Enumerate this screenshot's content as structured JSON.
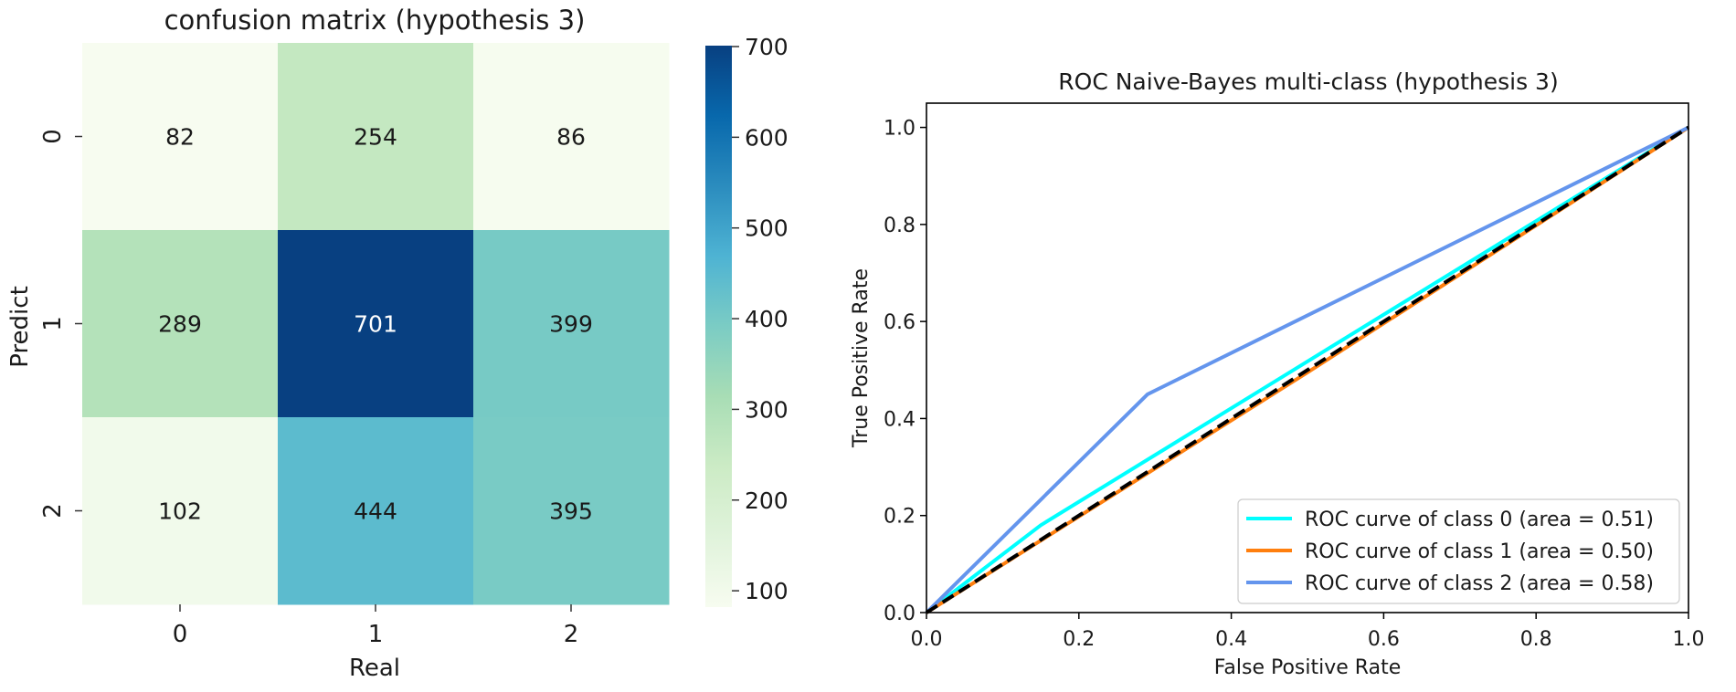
{
  "chart_data": [
    {
      "type": "heatmap",
      "title": "confusion matrix  (hypothesis 3)",
      "xlabel": "Real",
      "ylabel": "Predict",
      "x_categories": [
        "0",
        "1",
        "2"
      ],
      "y_categories": [
        "0",
        "1",
        "2"
      ],
      "matrix": [
        [
          82,
          254,
          86
        ],
        [
          289,
          701,
          399
        ],
        [
          102,
          444,
          395
        ]
      ],
      "colormap": "GnBu",
      "color_range": [
        82,
        701
      ],
      "colorbar_ticks": [
        "100",
        "200",
        "300",
        "400",
        "500",
        "600",
        "700"
      ]
    },
    {
      "type": "line",
      "title": "ROC Naive-Bayes multi-class  (hypothesis 3)",
      "xlabel": "False Positive Rate",
      "ylabel": "True Positive Rate",
      "xlim": [
        0.0,
        1.0
      ],
      "ylim": [
        0.0,
        1.05
      ],
      "x_ticks": [
        "0.0",
        "0.2",
        "0.4",
        "0.6",
        "0.8",
        "1.0"
      ],
      "y_ticks": [
        "0.0",
        "0.2",
        "0.4",
        "0.6",
        "0.8",
        "1.0"
      ],
      "legend_position": "lower right",
      "series": [
        {
          "name": "ROC curve of class 0 (area = 0.51)",
          "color": "#00ffff",
          "x": [
            0.0,
            0.15,
            1.0
          ],
          "y": [
            0.0,
            0.18,
            1.0
          ]
        },
        {
          "name": "ROC curve of class 1 (area = 0.50)",
          "color": "#ff7f0e",
          "x": [
            0.0,
            0.5,
            1.0
          ],
          "y": [
            0.0,
            0.495,
            1.0
          ]
        },
        {
          "name": "ROC curve of class 2 (area = 0.58)",
          "color": "#6495ed",
          "x": [
            0.0,
            0.29,
            1.0
          ],
          "y": [
            0.0,
            0.45,
            1.0
          ]
        }
      ],
      "reference_line": {
        "color": "#000000",
        "style": "dashed",
        "x": [
          0.0,
          1.0
        ],
        "y": [
          0.0,
          1.0
        ]
      }
    }
  ]
}
